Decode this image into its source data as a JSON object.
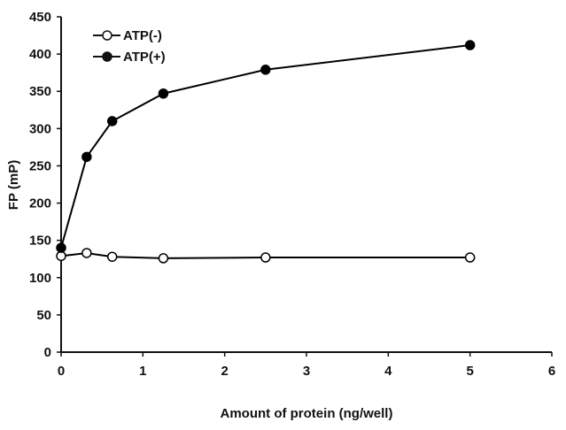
{
  "chart_data": {
    "type": "line",
    "xlabel": "Amount of protein (ng/well)",
    "ylabel": "FP (mP)",
    "xlim": [
      0,
      6
    ],
    "ylim": [
      0,
      450
    ],
    "xticks": [
      0,
      1,
      2,
      3,
      4,
      5,
      6
    ],
    "yticks": [
      0,
      50,
      100,
      150,
      200,
      250,
      300,
      350,
      400,
      450
    ],
    "grid": false,
    "legend_position": "top-left",
    "series": [
      {
        "name": "ATP(-)",
        "marker": "open-circle",
        "color": "#000000",
        "x": [
          0,
          0.3125,
          0.625,
          1.25,
          2.5,
          5
        ],
        "y": [
          129,
          133,
          128,
          126,
          127,
          127
        ]
      },
      {
        "name": "ATP(+)",
        "marker": "filled-circle",
        "color": "#000000",
        "x": [
          0,
          0.3125,
          0.625,
          1.25,
          2.5,
          5
        ],
        "y": [
          140,
          262,
          310,
          347,
          379,
          412
        ]
      }
    ]
  }
}
